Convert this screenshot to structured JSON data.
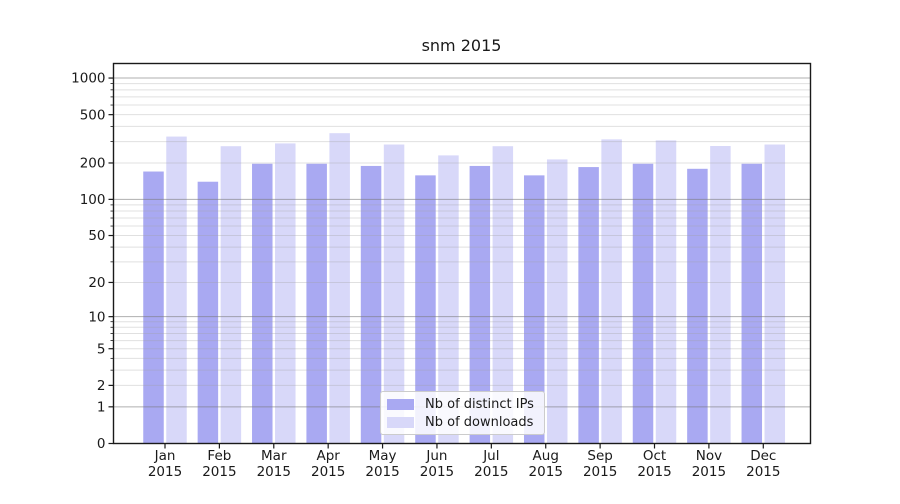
{
  "chart_data": {
    "type": "bar",
    "title": "snm 2015",
    "categories": [
      "Jan",
      "Feb",
      "Mar",
      "Apr",
      "May",
      "Jun",
      "Jul",
      "Aug",
      "Sep",
      "Oct",
      "Nov",
      "Dec"
    ],
    "x_tick_second_line": "2015",
    "series": [
      {
        "name": "Nb of distinct IPs",
        "color": "#a9a9f2",
        "values": [
          170,
          140,
          197,
          197,
          189,
          158,
          189,
          158,
          185,
          197,
          179,
          197
        ]
      },
      {
        "name": "Nb of downloads",
        "color": "#d8d8f9",
        "values": [
          330,
          275,
          290,
          352,
          284,
          231,
          275,
          214,
          313,
          307,
          276,
          284
        ]
      }
    ],
    "yscale": "log1p",
    "yticks": [
      0,
      1,
      2,
      5,
      10,
      20,
      50,
      100,
      200,
      500,
      1000
    ],
    "major_grid_values": [
      1,
      10,
      100,
      1000
    ],
    "ylim": [
      0,
      1300
    ],
    "grid": "horizontal major+minor",
    "legend_position": "lower center",
    "colors": {
      "spine": "#1a1a1a",
      "major_grid": "#b3b3b3",
      "minor_grid": "#e0e0e0",
      "background": "#ffffff"
    }
  }
}
